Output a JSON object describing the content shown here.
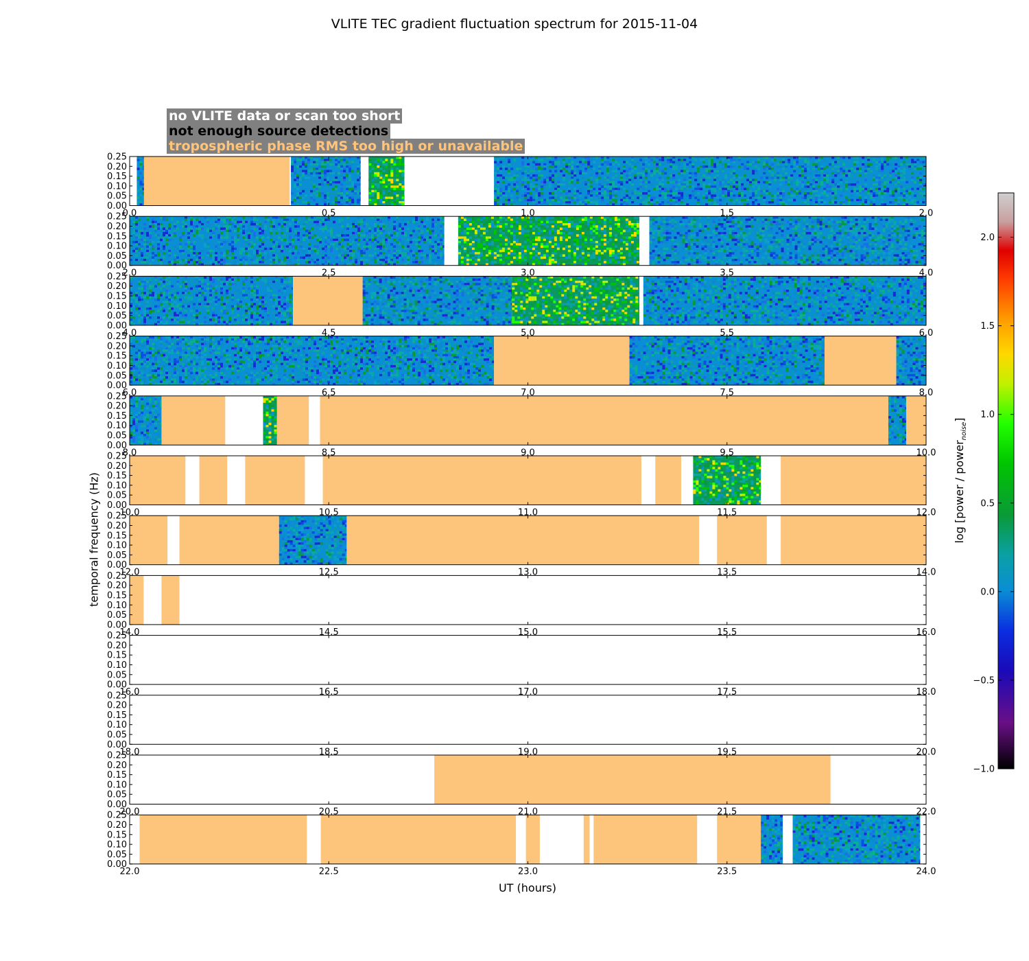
{
  "chart_data": {
    "type": "heatmap",
    "title": "VLITE TEC gradient fluctuation spectrum for 2015-11-04",
    "xlabel": "UT (hours)",
    "ylabel": "temporal frequency (Hz)",
    "colorbar_label": "log [power / power_noise]",
    "colorbar_label_main": "log [power / power",
    "colorbar_label_sub": "noise",
    "colorbar_label_end": "]",
    "colorbar_range": [
      -1.0,
      2.25
    ],
    "colorbar_ticks": [
      "−1.0",
      "−0.5",
      "0.0",
      "0.5",
      "1.0",
      "1.5",
      "2.0"
    ],
    "colorbar_tick_values": [
      -1.0,
      -0.5,
      0.0,
      0.5,
      1.0,
      1.5,
      2.0
    ],
    "ylim": [
      0,
      0.25
    ],
    "yticks": [
      "0.00",
      "0.05",
      "0.10",
      "0.15",
      "0.20",
      "0.25"
    ],
    "ytick_values": [
      0,
      0.05,
      0.1,
      0.15,
      0.2,
      0.25
    ],
    "colors": {
      "trop_flag": "#fdc57c",
      "no_data": "#ffffff",
      "legend_bg": "#808080",
      "legend_no_data": "#ffffff",
      "legend_no_sources": "#000000",
      "legend_trop": "#ffc47a"
    },
    "legend": [
      "no VLITE data or scan too short",
      "not enough source detections",
      "tropospheric phase RMS too high or unavailable"
    ],
    "panels": [
      {
        "xlim": [
          0,
          2
        ],
        "xticks": [
          "0.0",
          "0.5",
          "1.0",
          "1.5",
          "2.0"
        ],
        "spectrum": [
          [
            0.018,
            0.036,
            0
          ],
          [
            0.405,
            0.58,
            0
          ],
          [
            0.6,
            0.69,
            1
          ],
          [
            0.915,
            2.0,
            0
          ]
        ],
        "trop": [
          [
            0.036,
            0.402
          ]
        ]
      },
      {
        "xlim": [
          2,
          4
        ],
        "xticks": [
          "2.0",
          "2.5",
          "3.0",
          "3.5",
          "4.0"
        ],
        "spectrum": [
          [
            2.0,
            2.79,
            0
          ],
          [
            2.825,
            3.28,
            1
          ],
          [
            3.305,
            4.0,
            0
          ]
        ],
        "trop": []
      },
      {
        "xlim": [
          4,
          6
        ],
        "xticks": [
          "4.0",
          "4.5",
          "5.0",
          "5.5",
          "6.0"
        ],
        "spectrum": [
          [
            4.0,
            4.41,
            0
          ],
          [
            4.585,
            4.96,
            0
          ],
          [
            4.96,
            5.28,
            1
          ],
          [
            5.29,
            6.0,
            0
          ]
        ],
        "trop": [
          [
            4.41,
            4.585
          ]
        ]
      },
      {
        "xlim": [
          6,
          8
        ],
        "xticks": [
          "6.0",
          "6.5",
          "7.0",
          "7.5",
          "8.0"
        ],
        "spectrum": [
          [
            6.0,
            6.915,
            0
          ],
          [
            7.255,
            7.745,
            0
          ],
          [
            7.925,
            8.0,
            0
          ]
        ],
        "trop": [
          [
            6.915,
            7.255
          ],
          [
            7.745,
            7.925
          ]
        ]
      },
      {
        "xlim": [
          8,
          10
        ],
        "xticks": [
          "8.0",
          "8.5",
          "9.0",
          "9.5",
          "10.0"
        ],
        "spectrum": [
          [
            8.0,
            8.08,
            0
          ],
          [
            8.335,
            8.37,
            1
          ],
          [
            9.905,
            9.95,
            0
          ]
        ],
        "trop": [
          [
            8.08,
            8.24
          ],
          [
            8.37,
            8.45
          ],
          [
            8.478,
            9.905
          ],
          [
            9.95,
            10.0
          ]
        ]
      },
      {
        "xlim": [
          10,
          12
        ],
        "xticks": [
          "10.0",
          "10.5",
          "11.0",
          "11.5",
          "12.0"
        ],
        "spectrum": [
          [
            11.415,
            11.585,
            1
          ]
        ],
        "trop": [
          [
            10.0,
            10.14
          ],
          [
            10.175,
            10.245
          ],
          [
            10.29,
            10.44
          ],
          [
            10.485,
            11.285
          ],
          [
            11.32,
            11.385
          ],
          [
            11.635,
            12.0
          ]
        ]
      },
      {
        "xlim": [
          12,
          14
        ],
        "xticks": [
          "12.0",
          "12.5",
          "13.0",
          "13.5",
          "14.0"
        ],
        "spectrum": [
          [
            12.375,
            12.545,
            0
          ]
        ],
        "trop": [
          [
            12.0,
            12.095
          ],
          [
            12.125,
            12.375
          ],
          [
            12.545,
            13.43
          ],
          [
            13.475,
            13.6
          ],
          [
            13.635,
            14.0
          ]
        ]
      },
      {
        "xlim": [
          14,
          16
        ],
        "xticks": [
          "14.0",
          "14.5",
          "15.0",
          "15.5",
          "16.0"
        ],
        "spectrum": [],
        "trop": [
          [
            14.0,
            14.035
          ],
          [
            14.08,
            14.125
          ]
        ]
      },
      {
        "xlim": [
          16,
          18
        ],
        "xticks": [
          "16.0",
          "16.5",
          "17.0",
          "17.5",
          "18.0"
        ],
        "spectrum": [],
        "trop": []
      },
      {
        "xlim": [
          18,
          20
        ],
        "xticks": [
          "18.0",
          "18.5",
          "19.0",
          "19.5",
          "20.0"
        ],
        "spectrum": [],
        "trop": []
      },
      {
        "xlim": [
          20,
          22
        ],
        "xticks": [
          "20.0",
          "20.5",
          "21.0",
          "21.5",
          "22.0"
        ],
        "spectrum": [],
        "trop": [
          [
            20.765,
            21.76
          ]
        ]
      },
      {
        "xlim": [
          22,
          24
        ],
        "xticks": [
          "22.0",
          "22.5",
          "23.0",
          "23.5",
          "24.0"
        ],
        "spectrum": [
          [
            23.585,
            23.64,
            0
          ],
          [
            23.665,
            23.985,
            0
          ]
        ],
        "trop": [
          [
            22.025,
            22.445
          ],
          [
            22.48,
            22.97
          ],
          [
            22.995,
            23.03
          ],
          [
            23.14,
            23.155
          ],
          [
            23.165,
            23.425
          ],
          [
            23.475,
            23.585
          ]
        ]
      }
    ]
  }
}
